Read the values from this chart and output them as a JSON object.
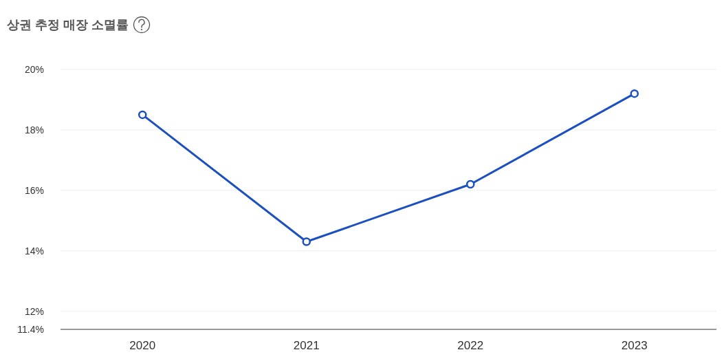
{
  "chart_data": {
    "type": "line",
    "title": "상권 추정 매장 소멸률",
    "categories": [
      "2020",
      "2021",
      "2022",
      "2023"
    ],
    "series": [
      {
        "color": "#1c4fc0",
        "values": [
          18.5,
          14.3,
          16.2,
          19.2
        ]
      }
    ],
    "ylim": [
      11.4,
      20
    ],
    "yticks": [
      {
        "value": 11.4,
        "label": "11.4%"
      },
      {
        "value": 12,
        "label": "12%"
      },
      {
        "value": 14,
        "label": "14%"
      },
      {
        "value": 16,
        "label": "16%"
      },
      {
        "value": 18,
        "label": "18%"
      },
      {
        "value": 20,
        "label": "20%"
      }
    ],
    "grid": "y",
    "marker": "circle",
    "line_style": "solid"
  }
}
